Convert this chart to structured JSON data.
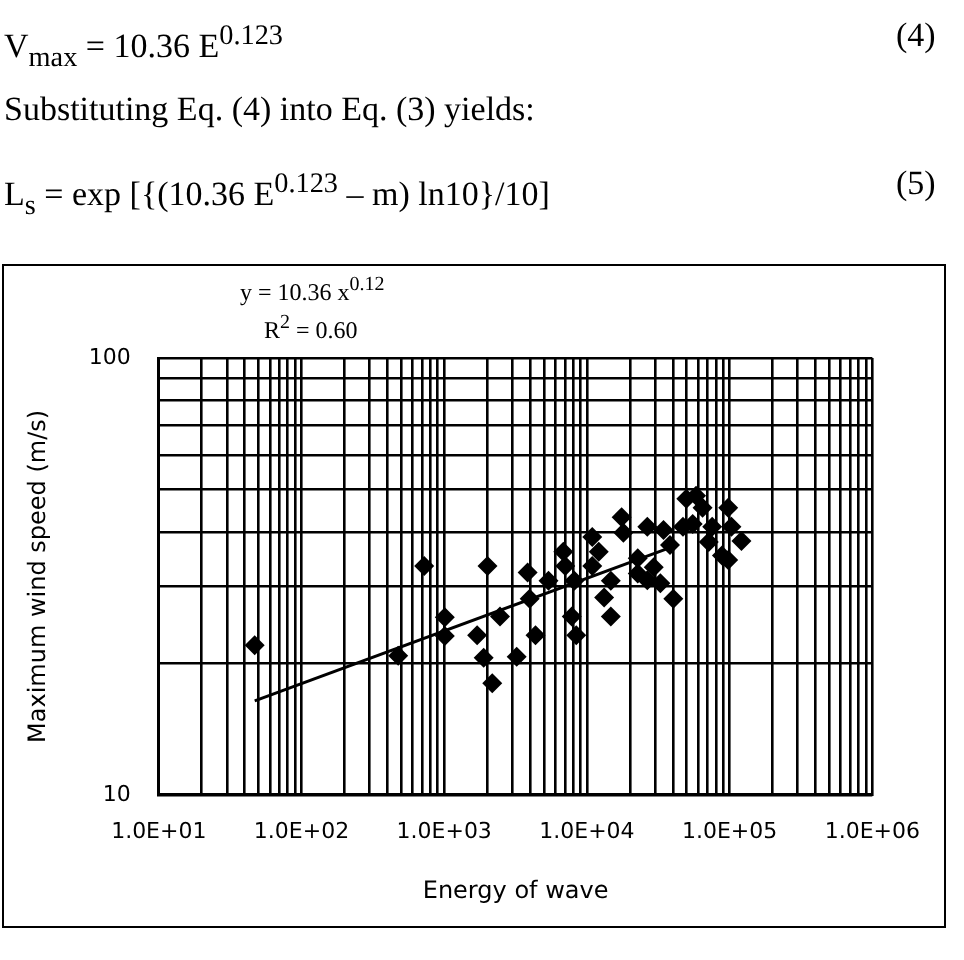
{
  "chart_data": {
    "type": "scatter",
    "xlabel": "Energy of wave",
    "ylabel": "Maximum wind speed (m/s)",
    "annotations": [
      "V$_{max}$ = 10.36 E$^{0.123}$",
      "(4)",
      "Substituting Eq. (4) into Eq. (3) yields:",
      "L$_{s}$ = exp [{(10.36 E$^{0.123}$ – m) ln10}/10]",
      "(5)",
      "y = 10.36 x$^{0.12}$",
      "R$^{2}$ = 0.60"
    ],
    "series": [
      {
        "color": "#000000",
        "marker": "diamond",
        "x": [
          47,
          476,
          724,
          1010,
          1010,
          1700,
          1890,
          2010,
          2170,
          2460,
          3220,
          3840,
          3970,
          4360,
          5380,
          6830,
          7050,
          7830,
          8420,
          8170,
          10900,
          12100,
          10900,
          14700,
          13200,
          14700,
          17500,
          18000,
          26500,
          22700,
          34400,
          26500,
          32700,
          40300,
          49700,
          58200,
          64600,
          55100,
          47100,
          75500,
          97700,
          103000,
          121000,
          88300,
          97700,
          71400,
          38200,
          22700,
          29400
        ],
        "values": [
          22.0,
          20.8,
          33.4,
          25.5,
          23.1,
          23.2,
          20.6,
          33.4,
          18.0,
          25.6,
          20.7,
          32.3,
          28.1,
          23.2,
          30.9,
          36.0,
          33.4,
          25.6,
          23.2,
          30.9,
          38.9,
          36.0,
          33.4,
          30.9,
          28.3,
          25.6,
          43.2,
          39.8,
          41.1,
          34.8,
          40.4,
          31.0,
          30.5,
          28.1,
          47.6,
          48.4,
          45.4,
          41.7,
          41.1,
          41.1,
          45.4,
          41.1,
          38.1,
          35.3,
          34.5,
          37.9,
          37.3,
          32.1,
          33.2
        ]
      },
      {
        "type": "line",
        "color": "#000000",
        "marker": "none",
        "x": [
          47,
          40000
        ],
        "values": [
          16.4,
          37.0
        ]
      }
    ],
    "xlim": [
      10,
      1000000
    ],
    "ylim": [
      10,
      100
    ],
    "log": "xy",
    "grid": true,
    "legend": false,
    "xticks": [
      {
        "value": 10,
        "label": "1.0E+01"
      },
      {
        "value": 20,
        "label": null
      },
      {
        "value": 30,
        "label": null
      },
      {
        "value": 40,
        "label": null
      },
      {
        "value": 50,
        "label": null
      },
      {
        "value": 60,
        "label": null
      },
      {
        "value": 70,
        "label": null
      },
      {
        "value": 80,
        "label": null
      },
      {
        "value": 90,
        "label": null
      },
      {
        "value": 100,
        "label": "1.0E+02"
      },
      {
        "value": 200,
        "label": null
      },
      {
        "value": 300,
        "label": null
      },
      {
        "value": 400,
        "label": null
      },
      {
        "value": 500,
        "label": null
      },
      {
        "value": 600,
        "label": null
      },
      {
        "value": 700,
        "label": null
      },
      {
        "value": 800,
        "label": null
      },
      {
        "value": 900,
        "label": null
      },
      {
        "value": 1000,
        "label": "1.0E+03"
      },
      {
        "value": 2000,
        "label": null
      },
      {
        "value": 3000,
        "label": null
      },
      {
        "value": 4000,
        "label": null
      },
      {
        "value": 5000,
        "label": null
      },
      {
        "value": 6000,
        "label": null
      },
      {
        "value": 7000,
        "label": null
      },
      {
        "value": 8000,
        "label": null
      },
      {
        "value": 9000,
        "label": null
      },
      {
        "value": 10000,
        "label": "1.0E+04"
      },
      {
        "value": 20000,
        "label": null
      },
      {
        "value": 30000,
        "label": null
      },
      {
        "value": 40000,
        "label": null
      },
      {
        "value": 50000,
        "label": null
      },
      {
        "value": 60000,
        "label": null
      },
      {
        "value": 70000,
        "label": null
      },
      {
        "value": 80000,
        "label": null
      },
      {
        "value": 90000,
        "label": null
      },
      {
        "value": 100000,
        "label": "1.0E+05"
      },
      {
        "value": 200000,
        "label": null
      },
      {
        "value": 300000,
        "label": null
      },
      {
        "value": 400000,
        "label": null
      },
      {
        "value": 500000,
        "label": null
      },
      {
        "value": 600000,
        "label": null
      },
      {
        "value": 700000,
        "label": null
      },
      {
        "value": 800000,
        "label": null
      },
      {
        "value": 900000,
        "label": null
      },
      {
        "value": 1000000,
        "label": "1.0E+06"
      }
    ],
    "yticks": [
      10,
      {
        "value": 20,
        "label": null
      },
      {
        "value": 30,
        "label": null
      },
      {
        "value": 40,
        "label": null
      },
      {
        "value": 50,
        "label": null
      },
      {
        "value": 60,
        "label": null
      },
      {
        "value": 70,
        "label": null
      },
      {
        "value": 80,
        "label": null
      },
      {
        "value": 90,
        "label": null
      },
      100
    ]
  }
}
